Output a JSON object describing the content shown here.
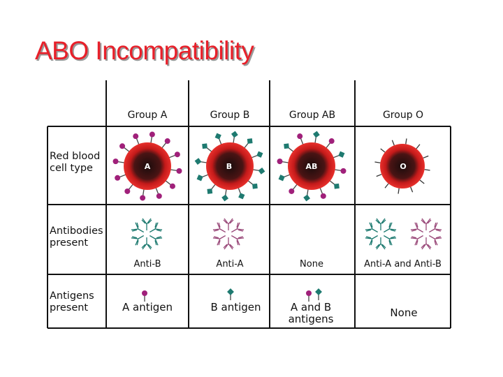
{
  "header": {
    "title": "ABO Incompatibility"
  },
  "table": {
    "columns": [
      "Group A",
      "Group B",
      "Group AB",
      "Group O"
    ],
    "rows": [
      {
        "label": "Red blood cell type",
        "cells": [
          "A",
          "B",
          "AB",
          "O"
        ]
      },
      {
        "label": "Antibodies present",
        "cells": [
          "Anti-B",
          "Anti-A",
          "None",
          "Anti-A and Anti-B"
        ]
      },
      {
        "label": "Antigens present",
        "cells": [
          "A antigen",
          "B antigen",
          "A and B antigens",
          "None"
        ]
      }
    ]
  }
}
